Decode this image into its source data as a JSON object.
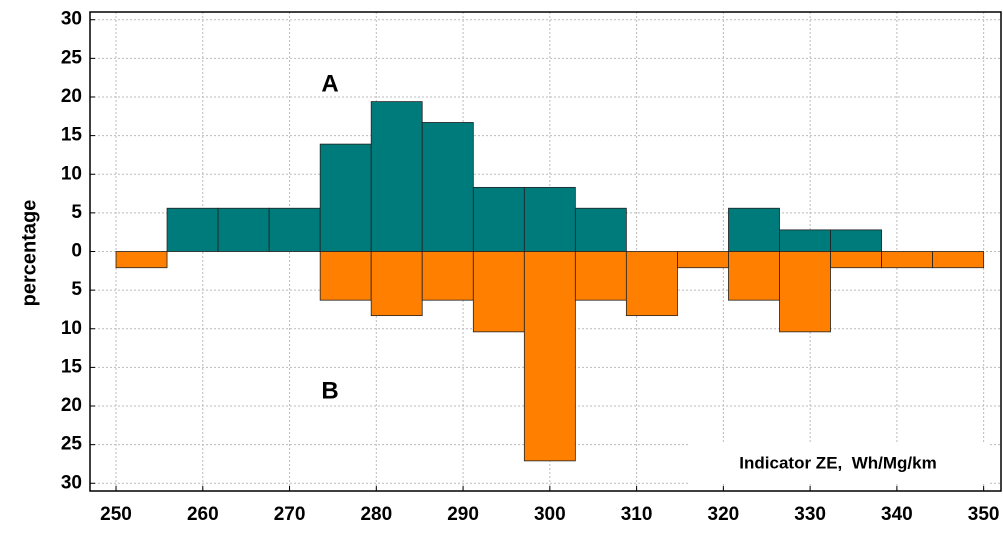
{
  "chart_data": {
    "type": "histogram",
    "bins": [
      250,
      255.88,
      261.76,
      267.65,
      273.53,
      279.41,
      285.29,
      291.18,
      297.06,
      302.94,
      308.82,
      314.71,
      320.59,
      326.47,
      332.35,
      338.24,
      344.12,
      350
    ],
    "series": [
      {
        "name": "A",
        "color": "#007b7b",
        "values": [
          0,
          5.6,
          5.6,
          5.6,
          13.9,
          19.4,
          16.7,
          8.3,
          8.3,
          5.6,
          0,
          0,
          5.6,
          2.8,
          2.8,
          0,
          0
        ]
      },
      {
        "name": "B",
        "color": "#ff8000",
        "values": [
          -2.1,
          0,
          0,
          0,
          -6.3,
          -8.3,
          -6.3,
          -10.4,
          -27.1,
          -6.3,
          -8.3,
          -2.1,
          -6.3,
          -10.4,
          -2.1,
          -2.1,
          -2.1
        ]
      }
    ],
    "xlabel": "Indicator ZE,  Wh/Mg/km",
    "ylabel": "percentage",
    "xlim": [
      247,
      352
    ],
    "ylim": [
      -31,
      31
    ],
    "xticks": [
      250,
      260,
      270,
      280,
      290,
      300,
      310,
      320,
      330,
      340,
      350
    ],
    "yticks": [
      {
        "value": -30,
        "label": "30"
      },
      {
        "value": -25,
        "label": "25"
      },
      {
        "value": -20,
        "label": "20"
      },
      {
        "value": -15,
        "label": "15"
      },
      {
        "value": -10,
        "label": "10"
      },
      {
        "value": -5,
        "label": "5"
      },
      0,
      5,
      10,
      15,
      20,
      25,
      30
    ],
    "grid": true
  }
}
